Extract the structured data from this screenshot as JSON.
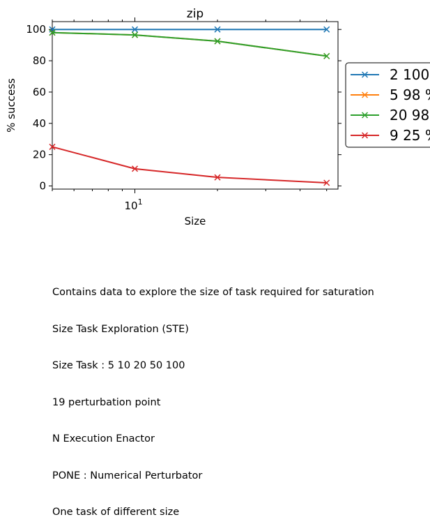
{
  "chart_data": {
    "type": "line",
    "title": "zip",
    "xlabel": "Size",
    "ylabel": "% success",
    "x_scale": "log",
    "x": [
      5,
      10,
      20,
      50
    ],
    "xlim": [
      5,
      55
    ],
    "ylim": [
      -2,
      105
    ],
    "yticks": [
      0,
      20,
      40,
      60,
      80,
      100
    ],
    "xtick_major": {
      "value": 10,
      "base": "10",
      "exp": "1"
    },
    "grid": false,
    "legend_position": "right, outside",
    "series": [
      {
        "name": "2 100",
        "color": "#1f77b4",
        "values": [
          100,
          100,
          100,
          100
        ]
      },
      {
        "name": "5 98 %",
        "color": "#ff7f0e",
        "values": [
          98,
          96.5,
          92.5,
          83
        ]
      },
      {
        "name": "20 98",
        "color": "#2ca02c",
        "values": [
          98,
          96.5,
          92.5,
          83
        ]
      },
      {
        "name": "9 25 %",
        "color": "#d62728",
        "values": [
          25,
          11,
          5.5,
          2
        ]
      }
    ]
  },
  "caption": [
    "Contains data to explore the size of task required for saturation",
    "Size Task Exploration (STE)",
    "Size Task : 5 10 20 50 100",
    "19 perturbation point",
    "N Execution Enactor",
    "PONE : Numerical Perturbator",
    "One task of different size"
  ]
}
